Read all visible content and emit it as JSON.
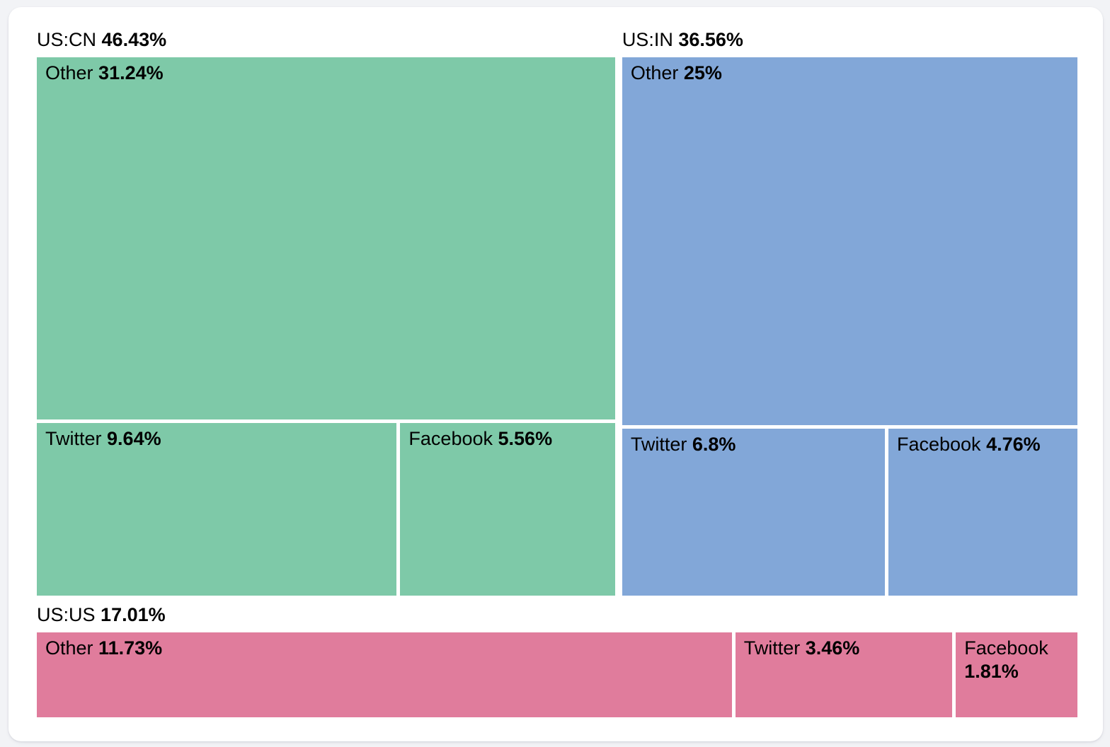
{
  "page": {
    "background": "#f2f3f6",
    "card_background": "#ffffff",
    "text_color": "#000000"
  },
  "chart_data": {
    "type": "treemap",
    "title": "",
    "unit": "%",
    "legend": false,
    "grid": false,
    "groups": [
      {
        "label": "US:CN",
        "value": 46.43,
        "value_label": "46.43%",
        "color": "#7ec9a8",
        "layout": "stacked",
        "cells": [
          {
            "label": "Other",
            "value": 31.24,
            "value_label": "31.24%"
          },
          {
            "label": "Twitter",
            "value": 9.64,
            "value_label": "9.64%"
          },
          {
            "label": "Facebook",
            "value": 5.56,
            "value_label": "5.56%"
          }
        ]
      },
      {
        "label": "US:IN",
        "value": 36.56,
        "value_label": "36.56%",
        "color": "#82a7d8",
        "layout": "stacked",
        "cells": [
          {
            "label": "Other",
            "value": 25,
            "value_label": "25%"
          },
          {
            "label": "Twitter",
            "value": 6.8,
            "value_label": "6.8%"
          },
          {
            "label": "Facebook",
            "value": 4.76,
            "value_label": "4.76%"
          }
        ]
      },
      {
        "label": "US:US",
        "value": 17.01,
        "value_label": "17.01%",
        "color": "#e07c9c",
        "layout": "row",
        "cells": [
          {
            "label": "Other",
            "value": 11.73,
            "value_label": "11.73%"
          },
          {
            "label": "Twitter",
            "value": 3.46,
            "value_label": "3.46%"
          },
          {
            "label": "Facebook",
            "value": 1.81,
            "value_label": "1.81%"
          }
        ]
      }
    ]
  }
}
